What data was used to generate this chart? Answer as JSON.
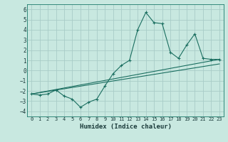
{
  "title": "",
  "xlabel": "Humidex (Indice chaleur)",
  "background_color": "#c8e8e0",
  "grid_color": "#a8ccc8",
  "line_color": "#1a6e60",
  "x": [
    0,
    1,
    2,
    3,
    4,
    5,
    6,
    7,
    8,
    9,
    10,
    11,
    12,
    13,
    14,
    15,
    16,
    17,
    18,
    19,
    20,
    21,
    22,
    23
  ],
  "line1": [
    -2.3,
    -2.4,
    -2.3,
    -1.9,
    -2.5,
    -2.8,
    -3.6,
    -3.1,
    -2.8,
    -1.5,
    -0.3,
    0.5,
    1.0,
    4.0,
    5.7,
    4.7,
    4.6,
    1.8,
    1.2,
    2.5,
    3.6,
    1.2,
    1.1,
    1.1
  ],
  "line2_x": [
    0,
    23
  ],
  "line2_y": [
    -2.3,
    1.1
  ],
  "line3_x": [
    0,
    23
  ],
  "line3_y": [
    -2.3,
    0.65
  ],
  "xlim": [
    -0.5,
    23.5
  ],
  "ylim": [
    -4.5,
    6.5
  ],
  "yticks": [
    -4,
    -3,
    -2,
    -1,
    0,
    1,
    2,
    3,
    4,
    5,
    6
  ],
  "xticks": [
    0,
    1,
    2,
    3,
    4,
    5,
    6,
    7,
    8,
    9,
    10,
    11,
    12,
    13,
    14,
    15,
    16,
    17,
    18,
    19,
    20,
    21,
    22,
    23
  ]
}
